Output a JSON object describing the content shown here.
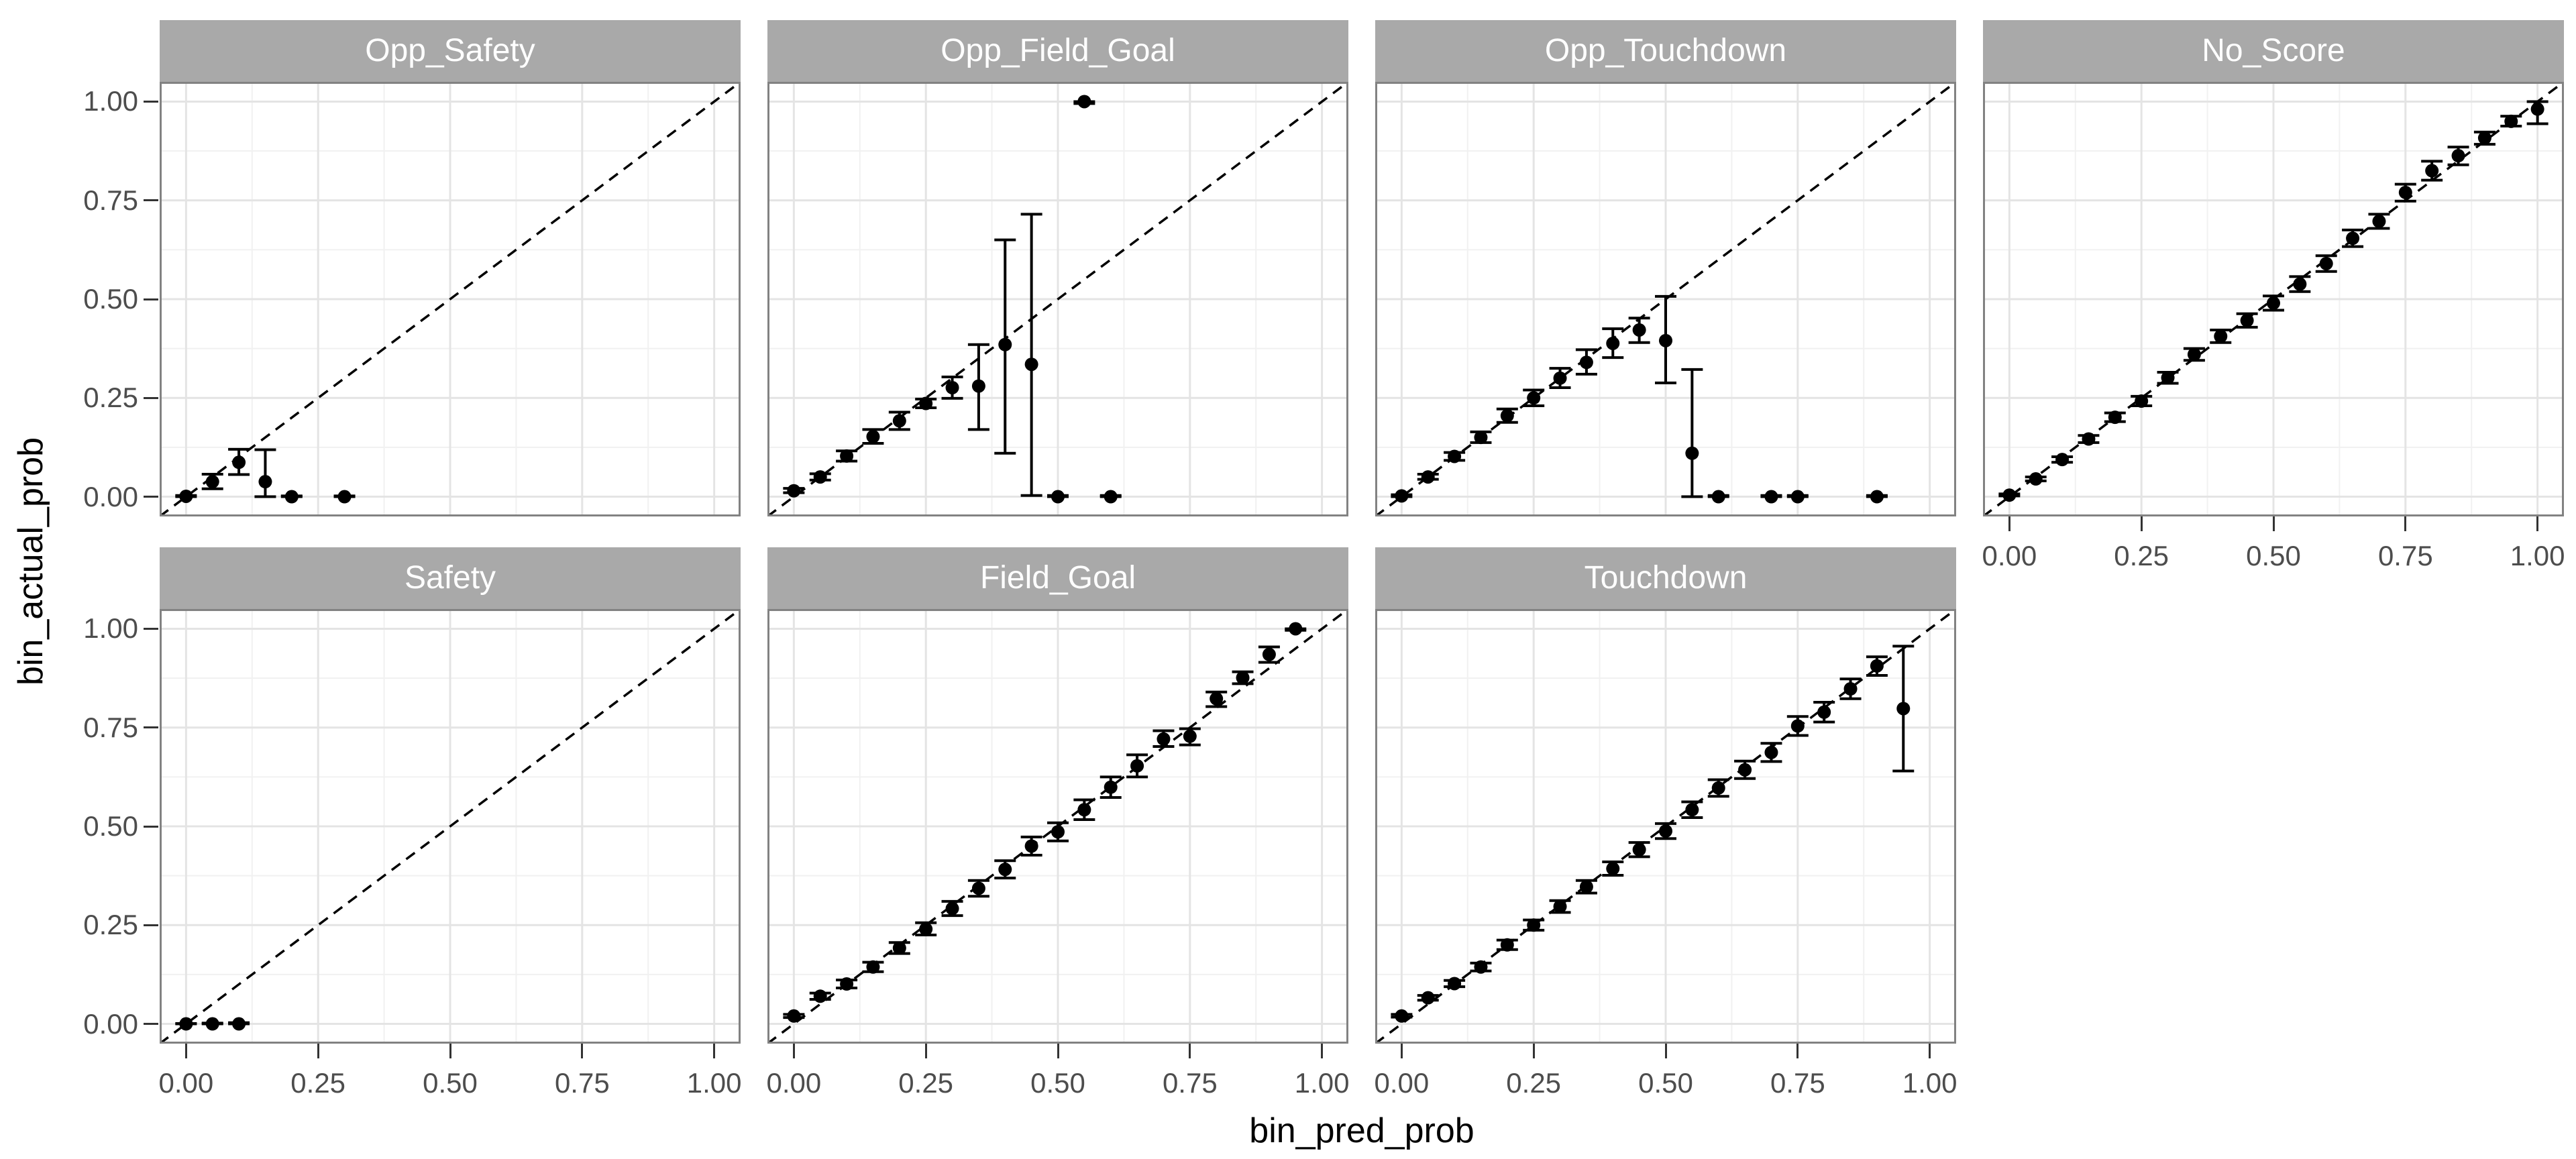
{
  "figure": {
    "x_axis_title": "bin_pred_prob",
    "y_axis_title": "bin_actual_prob",
    "colors": {
      "strip_fill": "#a9a9a9",
      "strip_text": "#ffffff",
      "panel_background": "#ffffff",
      "grid_major": "#e4e4e4",
      "grid_minor": "#f1f1f1",
      "panel_border": "#828282",
      "tick_mark": "#333333",
      "tick_label_text": "#4d4d4d",
      "axis_title_text": "#000000",
      "geom_color": "#000000"
    }
  },
  "chart_data": {
    "type": "scatter",
    "title": "",
    "xlabel": "bin_pred_prob",
    "ylabel": "bin_actual_prob",
    "xlim": [
      -0.05,
      1.05
    ],
    "ylim": [
      -0.05,
      1.05
    ],
    "x_ticks": [
      0,
      0.25,
      0.5,
      0.75,
      1
    ],
    "y_ticks": [
      0,
      0.25,
      0.5,
      0.75,
      1
    ],
    "x_tick_labels": [
      "0.00",
      "0.25",
      "0.50",
      "0.75",
      "1.00"
    ],
    "y_tick_labels": [
      "0.00",
      "0.25",
      "0.50",
      "0.75",
      "1.00"
    ],
    "minor_breaks": [
      0.125,
      0.375,
      0.625,
      0.875
    ],
    "grid": "on",
    "legend": "none",
    "reference_line": "dashed y=x diagonal in every facet",
    "point_format": "[bin_pred_prob, bin_actual_prob, ci_low, ci_high]",
    "facets": [
      {
        "label": "Opp_Safety",
        "row": 0,
        "col": 0,
        "x_axis": false,
        "points": [
          [
            0.0,
            0.001,
            0.0,
            0.003
          ],
          [
            0.05,
            0.038,
            0.02,
            0.057
          ],
          [
            0.1,
            0.087,
            0.056,
            0.12
          ],
          [
            0.15,
            0.038,
            0.0,
            0.119
          ],
          [
            0.2,
            0.0,
            0.0,
            0.002
          ],
          [
            0.3,
            0.0,
            0.0,
            0.002
          ]
        ]
      },
      {
        "label": "Opp_Field_Goal",
        "row": 0,
        "col": 1,
        "x_axis": false,
        "points": [
          [
            0.0,
            0.015,
            0.01,
            0.021
          ],
          [
            0.05,
            0.05,
            0.042,
            0.058
          ],
          [
            0.1,
            0.103,
            0.09,
            0.116
          ],
          [
            0.15,
            0.152,
            0.135,
            0.17
          ],
          [
            0.2,
            0.192,
            0.17,
            0.214
          ],
          [
            0.25,
            0.236,
            0.225,
            0.247
          ],
          [
            0.3,
            0.276,
            0.249,
            0.303
          ],
          [
            0.35,
            0.28,
            0.17,
            0.385
          ],
          [
            0.4,
            0.385,
            0.11,
            0.65
          ],
          [
            0.45,
            0.335,
            0.003,
            0.715
          ],
          [
            0.5,
            0.0,
            0.0,
            0.003
          ],
          [
            0.55,
            1.0,
            0.995,
            1.0
          ],
          [
            0.6,
            0.0,
            0.0,
            0.003
          ]
        ]
      },
      {
        "label": "Opp_Touchdown",
        "row": 0,
        "col": 2,
        "x_axis": false,
        "points": [
          [
            0.0,
            0.002,
            0.0,
            0.005
          ],
          [
            0.05,
            0.05,
            0.044,
            0.057
          ],
          [
            0.1,
            0.102,
            0.092,
            0.112
          ],
          [
            0.15,
            0.15,
            0.137,
            0.164
          ],
          [
            0.2,
            0.205,
            0.188,
            0.222
          ],
          [
            0.25,
            0.25,
            0.23,
            0.27
          ],
          [
            0.3,
            0.3,
            0.276,
            0.325
          ],
          [
            0.35,
            0.34,
            0.31,
            0.372
          ],
          [
            0.4,
            0.388,
            0.352,
            0.425
          ],
          [
            0.45,
            0.422,
            0.39,
            0.452
          ],
          [
            0.5,
            0.395,
            0.288,
            0.507
          ],
          [
            0.55,
            0.11,
            0.0,
            0.322
          ],
          [
            0.6,
            0.0,
            0.0,
            0.003
          ],
          [
            0.7,
            0.0,
            0.0,
            0.003
          ],
          [
            0.75,
            0.0,
            0.0,
            0.003
          ],
          [
            0.9,
            0.0,
            0.0,
            0.003
          ]
        ]
      },
      {
        "label": "No_Score",
        "row": 0,
        "col": 3,
        "x_axis": true,
        "points": [
          [
            0.0,
            0.004,
            0.002,
            0.007
          ],
          [
            0.05,
            0.045,
            0.04,
            0.05
          ],
          [
            0.1,
            0.094,
            0.087,
            0.101
          ],
          [
            0.15,
            0.146,
            0.137,
            0.155
          ],
          [
            0.2,
            0.201,
            0.19,
            0.212
          ],
          [
            0.25,
            0.242,
            0.23,
            0.254
          ],
          [
            0.3,
            0.301,
            0.287,
            0.315
          ],
          [
            0.35,
            0.36,
            0.345,
            0.375
          ],
          [
            0.4,
            0.406,
            0.39,
            0.422
          ],
          [
            0.45,
            0.446,
            0.429,
            0.463
          ],
          [
            0.5,
            0.49,
            0.472,
            0.508
          ],
          [
            0.55,
            0.538,
            0.519,
            0.557
          ],
          [
            0.6,
            0.59,
            0.57,
            0.61
          ],
          [
            0.65,
            0.654,
            0.633,
            0.675
          ],
          [
            0.7,
            0.697,
            0.679,
            0.715
          ],
          [
            0.75,
            0.77,
            0.748,
            0.791
          ],
          [
            0.8,
            0.825,
            0.801,
            0.849
          ],
          [
            0.85,
            0.863,
            0.84,
            0.885
          ],
          [
            0.9,
            0.908,
            0.892,
            0.923
          ],
          [
            0.95,
            0.95,
            0.938,
            0.963
          ],
          [
            1.0,
            0.981,
            0.944,
            1.0
          ]
        ]
      },
      {
        "label": "Safety",
        "row": 1,
        "col": 0,
        "x_axis": true,
        "points": [
          [
            0.0,
            0.0,
            0.0,
            0.001
          ],
          [
            0.05,
            0.0,
            0.0,
            0.002
          ],
          [
            0.1,
            0.0,
            0.0,
            0.003
          ]
        ]
      },
      {
        "label": "Field_Goal",
        "row": 1,
        "col": 1,
        "x_axis": true,
        "points": [
          [
            0.0,
            0.02,
            0.016,
            0.024
          ],
          [
            0.05,
            0.07,
            0.062,
            0.078
          ],
          [
            0.1,
            0.101,
            0.091,
            0.111
          ],
          [
            0.15,
            0.144,
            0.132,
            0.156
          ],
          [
            0.2,
            0.192,
            0.178,
            0.206
          ],
          [
            0.25,
            0.24,
            0.225,
            0.256
          ],
          [
            0.3,
            0.292,
            0.274,
            0.31
          ],
          [
            0.35,
            0.343,
            0.323,
            0.363
          ],
          [
            0.4,
            0.391,
            0.369,
            0.413
          ],
          [
            0.45,
            0.45,
            0.427,
            0.473
          ],
          [
            0.5,
            0.486,
            0.463,
            0.509
          ],
          [
            0.55,
            0.542,
            0.517,
            0.567
          ],
          [
            0.6,
            0.599,
            0.573,
            0.625
          ],
          [
            0.65,
            0.653,
            0.625,
            0.681
          ],
          [
            0.7,
            0.721,
            0.702,
            0.742
          ],
          [
            0.75,
            0.728,
            0.706,
            0.747
          ],
          [
            0.8,
            0.823,
            0.803,
            0.84
          ],
          [
            0.85,
            0.876,
            0.861,
            0.891
          ],
          [
            0.9,
            0.935,
            0.915,
            0.954
          ],
          [
            0.95,
            1.0,
            0.996,
            1.0
          ]
        ]
      },
      {
        "label": "Touchdown",
        "row": 1,
        "col": 2,
        "x_axis": true,
        "points": [
          [
            0.0,
            0.02,
            0.017,
            0.024
          ],
          [
            0.05,
            0.066,
            0.06,
            0.072
          ],
          [
            0.1,
            0.102,
            0.094,
            0.11
          ],
          [
            0.15,
            0.144,
            0.134,
            0.154
          ],
          [
            0.2,
            0.2,
            0.188,
            0.212
          ],
          [
            0.25,
            0.25,
            0.237,
            0.263
          ],
          [
            0.3,
            0.297,
            0.282,
            0.312
          ],
          [
            0.35,
            0.347,
            0.331,
            0.363
          ],
          [
            0.4,
            0.393,
            0.376,
            0.41
          ],
          [
            0.45,
            0.441,
            0.423,
            0.459
          ],
          [
            0.5,
            0.488,
            0.469,
            0.507
          ],
          [
            0.55,
            0.542,
            0.522,
            0.562
          ],
          [
            0.6,
            0.597,
            0.576,
            0.618
          ],
          [
            0.65,
            0.643,
            0.621,
            0.665
          ],
          [
            0.7,
            0.687,
            0.664,
            0.71
          ],
          [
            0.75,
            0.754,
            0.73,
            0.778
          ],
          [
            0.8,
            0.789,
            0.764,
            0.814
          ],
          [
            0.85,
            0.848,
            0.823,
            0.873
          ],
          [
            0.9,
            0.906,
            0.882,
            0.929
          ],
          [
            0.95,
            0.798,
            0.64,
            0.956
          ]
        ]
      }
    ]
  }
}
